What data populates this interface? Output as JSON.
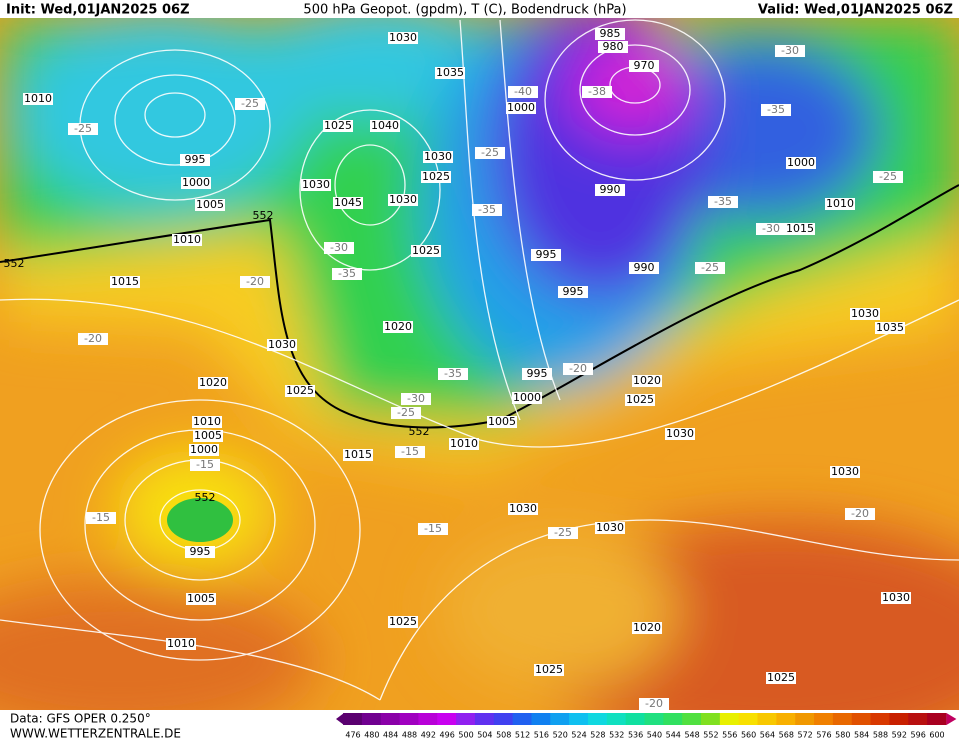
{
  "header": {
    "init": "Init: Wed,01JAN2025 06Z",
    "title": "500 hPa Geopot. (gpdm), T (C), Bodendruck (hPa)",
    "valid": "Valid: Wed,01JAN2025 06Z"
  },
  "footer": {
    "source": "Data: GFS OPER 0.250°",
    "website": "WWW.WETTERZENTRALE.DE"
  },
  "colorbar": {
    "labels": [
      476,
      480,
      484,
      488,
      492,
      496,
      500,
      504,
      508,
      512,
      516,
      520,
      524,
      528,
      532,
      536,
      540,
      544,
      548,
      552,
      556,
      560,
      564,
      568,
      572,
      576,
      580,
      584,
      588,
      592,
      596,
      600
    ]
  },
  "map_labels": {
    "isobars": [
      1030,
      985,
      980,
      970,
      1035,
      1010,
      1000,
      1025,
      1040,
      995,
      1030,
      1025,
      1000,
      1000,
      990,
      1030,
      1005,
      1045,
      1030,
      1010,
      1015,
      1010,
      1025,
      995,
      990,
      1015,
      995,
      1030,
      1035,
      1020,
      1030,
      1020,
      1025,
      1020,
      1025,
      995,
      1000,
      1005,
      1030,
      1010,
      1015,
      1010,
      1005,
      1000,
      1030,
      1030,
      1030,
      995,
      1005,
      1030,
      1010,
      1025,
      1020,
      1025,
      1025
    ],
    "temperatures": [
      -25,
      -25,
      -40,
      -38,
      -35,
      -30,
      -25,
      -25,
      -35,
      -35,
      -30,
      -30,
      -35,
      -20,
      -25,
      -20,
      -35,
      -20,
      -30,
      -25,
      -15,
      -15,
      -15,
      -15,
      -25,
      -20,
      -20
    ],
    "heights": [
      552,
      552,
      552,
      552
    ]
  }
}
